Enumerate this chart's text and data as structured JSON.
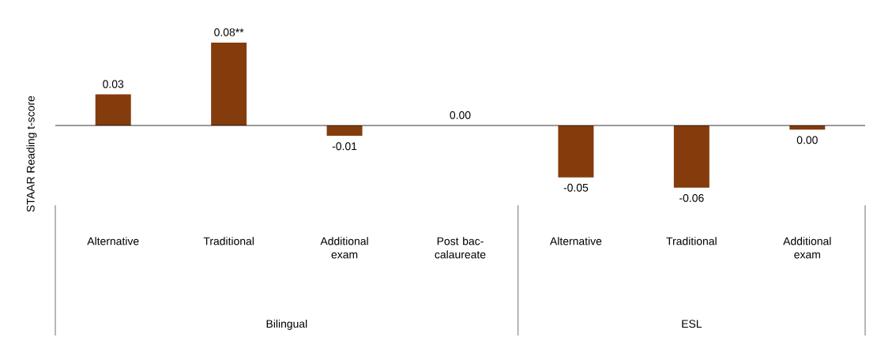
{
  "chart_data": {
    "type": "bar",
    "categories": [
      "Alternative",
      "Traditional",
      "Additional exam",
      "Post bac-calaureate",
      "Alternative",
      "Traditional",
      "Additional exam"
    ],
    "values": [
      0.03,
      0.08,
      -0.01,
      0,
      -0.05,
      -0.06,
      -0.004
    ],
    "value_labels": [
      "0.03",
      "0.08**",
      "-0.01",
      "0.00",
      "-0.05",
      "-0.06",
      "0.00"
    ],
    "color": "#843c0c",
    "ylabel": "STAAR Reading t-score",
    "annotations": [
      "Bilingual",
      "ESL"
    ]
  }
}
